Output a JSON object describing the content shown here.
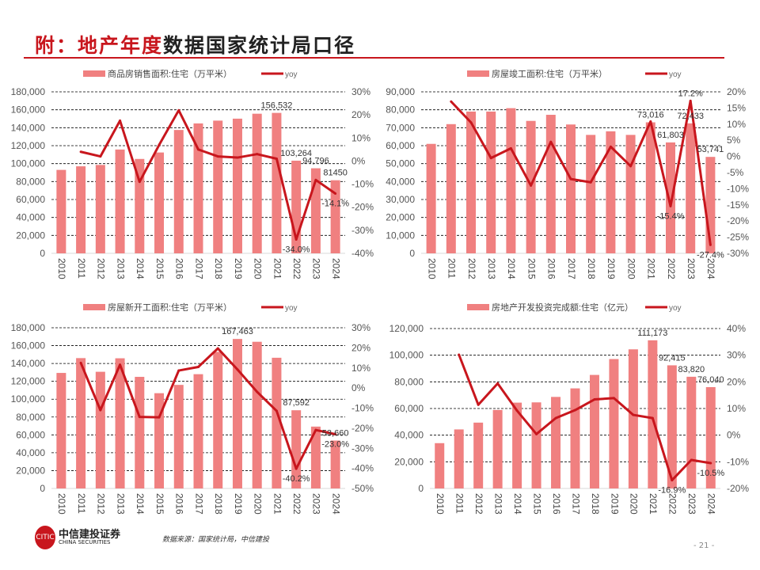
{
  "title": {
    "red_part": "附：地产年度",
    "black_part": "数据国家统计局口径"
  },
  "colors": {
    "bar": "#f08080",
    "line": "#c8161d",
    "title_red": "#c8161d"
  },
  "footer": {
    "logo_cn": "中信建投证券",
    "logo_en": "CHINA SECURITIES",
    "source": "数据来源：国家统计局，中信建投",
    "page_number": "- 21 -"
  },
  "chart_data": [
    {
      "type": "bar+line",
      "categories": [
        "2010",
        "2011",
        "2012",
        "2013",
        "2014",
        "2015",
        "2016",
        "2017",
        "2018",
        "2019",
        "2020",
        "2021",
        "2022",
        "2023",
        "2024"
      ],
      "series": [
        {
          "name": "商品房销售面积:住宅（万平米）",
          "type": "bar",
          "axis": "left",
          "values": [
            93000,
            97000,
            98500,
            115700,
            105200,
            112400,
            137500,
            144800,
            147900,
            150100,
            155600,
            156532,
            103264,
            94796,
            81450
          ]
        },
        {
          "name": "yoy",
          "type": "line",
          "axis": "right",
          "values": [
            null,
            4,
            2,
            17.5,
            -9,
            7,
            22,
            5,
            2,
            1.5,
            3,
            1,
            -34.0,
            -8.2,
            -14.1
          ]
        }
      ],
      "left_axis": {
        "min": 0,
        "max": 180000,
        "step": 20000,
        "ticks": [
          "0",
          "20,000",
          "40,000",
          "60,000",
          "80,000",
          "100,000",
          "120,000",
          "140,000",
          "160,000",
          "180,000"
        ]
      },
      "right_axis": {
        "min": -40,
        "max": 30,
        "step": 10,
        "ticks": [
          "-40%",
          "-30%",
          "-20%",
          "-10%",
          "0%",
          "10%",
          "20%",
          "30%"
        ]
      },
      "annotations": [
        {
          "text": "156,532",
          "series": 0,
          "index": 11,
          "pos": "above"
        },
        {
          "text": "103,264",
          "series": 0,
          "index": 12,
          "pos": "above"
        },
        {
          "text": "94,796",
          "series": 0,
          "index": 13,
          "pos": "above"
        },
        {
          "text": "81450",
          "series": 0,
          "index": 14,
          "pos": "above"
        },
        {
          "text": "-34.0%",
          "series": 1,
          "index": 12,
          "pos": "below"
        },
        {
          "text": "-14.1%",
          "series": 1,
          "index": 14,
          "pos": "below"
        }
      ],
      "grid": true,
      "legend": "top"
    },
    {
      "type": "bar+line",
      "categories": [
        "2010",
        "2011",
        "2012",
        "2013",
        "2014",
        "2015",
        "2016",
        "2017",
        "2018",
        "2019",
        "2020",
        "2021",
        "2022",
        "2023",
        "2024"
      ],
      "series": [
        {
          "name": "房屋竣工面积:住宅（万平米）",
          "type": "bar",
          "axis": "left",
          "values": [
            61000,
            72000,
            79000,
            79000,
            80900,
            73800,
            77200,
            71800,
            66000,
            68000,
            66000,
            73016,
            61803,
            72433,
            53741
          ]
        },
        {
          "name": "yoy",
          "type": "line",
          "axis": "right",
          "values": [
            null,
            17,
            10.5,
            -0.5,
            2.5,
            -9,
            4.5,
            -7,
            -8,
            3,
            -3,
            10.8,
            -15.4,
            17.2,
            -27.4
          ]
        }
      ],
      "left_axis": {
        "min": 0,
        "max": 90000,
        "step": 10000,
        "ticks": [
          "0",
          "10,000",
          "20,000",
          "30,000",
          "40,000",
          "50,000",
          "60,000",
          "70,000",
          "80,000",
          "90,000"
        ]
      },
      "right_axis": {
        "min": -30,
        "max": 20,
        "step": 5,
        "ticks": [
          "-30%",
          "-25%",
          "-20%",
          "-15%",
          "-10%",
          "-5%",
          "0%",
          "5%",
          "10%",
          "15%",
          "20%"
        ]
      },
      "annotations": [
        {
          "text": "73,016",
          "series": 0,
          "index": 11,
          "pos": "above"
        },
        {
          "text": "61,803",
          "series": 0,
          "index": 12,
          "pos": "above"
        },
        {
          "text": "72,433",
          "series": 0,
          "index": 13,
          "pos": "above"
        },
        {
          "text": "53,741",
          "series": 0,
          "index": 14,
          "pos": "above"
        },
        {
          "text": "17.2%",
          "series": 1,
          "index": 13,
          "pos": "above"
        },
        {
          "text": "-15.4%",
          "series": 1,
          "index": 12,
          "pos": "below"
        },
        {
          "text": "-27.4%",
          "series": 1,
          "index": 14,
          "pos": "below"
        }
      ],
      "grid": true,
      "legend": "top"
    },
    {
      "type": "bar+line",
      "categories": [
        "2010",
        "2011",
        "2012",
        "2013",
        "2014",
        "2015",
        "2016",
        "2017",
        "2018",
        "2019",
        "2020",
        "2021",
        "2022",
        "2023",
        "2024"
      ],
      "series": [
        {
          "name": "房屋新开工面积:住宅（万平米）",
          "type": "bar",
          "axis": "left",
          "values": [
            129400,
            146000,
            130700,
            145800,
            125000,
            106700,
            116000,
            128000,
            153000,
            167463,
            164300,
            146400,
            87592,
            69300,
            53660
          ]
        },
        {
          "name": "yoy",
          "type": "line",
          "axis": "right",
          "values": [
            null,
            12.5,
            -11,
            11.6,
            -14.4,
            -14.6,
            8.7,
            10.5,
            19.7,
            9.2,
            -1.9,
            -11.4,
            -40.2,
            -20.9,
            -23.0
          ]
        }
      ],
      "left_axis": {
        "min": 0,
        "max": 180000,
        "step": 20000,
        "ticks": [
          "0",
          "20,000",
          "40,000",
          "60,000",
          "80,000",
          "100,000",
          "120,000",
          "140,000",
          "160,000",
          "180,000"
        ]
      },
      "right_axis": {
        "min": -50,
        "max": 30,
        "step": 10,
        "ticks": [
          "-50%",
          "-40%",
          "-30%",
          "-20%",
          "-10%",
          "0%",
          "10%",
          "20%",
          "30%"
        ]
      },
      "annotations": [
        {
          "text": "167,463",
          "series": 0,
          "index": 9,
          "pos": "above"
        },
        {
          "text": "87,592",
          "series": 0,
          "index": 12,
          "pos": "above"
        },
        {
          "text": "53,660",
          "series": 0,
          "index": 14,
          "pos": "above"
        },
        {
          "text": "-40.2%",
          "series": 1,
          "index": 12,
          "pos": "below"
        },
        {
          "text": "-23.0%",
          "series": 1,
          "index": 14,
          "pos": "below"
        }
      ],
      "grid": true,
      "legend": "top"
    },
    {
      "type": "bar+line",
      "categories": [
        "2010",
        "2011",
        "2012",
        "2013",
        "2014",
        "2015",
        "2016",
        "2017",
        "2018",
        "2019",
        "2020",
        "2021",
        "2022",
        "2023",
        "2024"
      ],
      "series": [
        {
          "name": "房地产开发投资完成额:住宅（亿元）",
          "type": "bar",
          "axis": "left",
          "values": [
            34000,
            44300,
            49400,
            58900,
            64400,
            64600,
            68700,
            75100,
            85200,
            97100,
            104400,
            111173,
            92415,
            83820,
            76040
          ]
        },
        {
          "name": "yoy",
          "type": "line",
          "axis": "right",
          "values": [
            null,
            30.2,
            11.4,
            19.4,
            9.2,
            0.4,
            6.4,
            9.4,
            13.4,
            13.9,
            7.6,
            6.4,
            -16.9,
            -9.3,
            -10.5
          ]
        }
      ],
      "left_axis": {
        "min": 0,
        "max": 120000,
        "step": 20000,
        "ticks": [
          "0",
          "20,000",
          "40,000",
          "60,000",
          "80,000",
          "100,000",
          "120,000"
        ]
      },
      "right_axis": {
        "min": -20,
        "max": 40,
        "step": 10,
        "ticks": [
          "-20%",
          "-10%",
          "0%",
          "10%",
          "20%",
          "30%",
          "40%"
        ]
      },
      "annotations": [
        {
          "text": "111,173",
          "series": 0,
          "index": 11,
          "pos": "above"
        },
        {
          "text": "92,415",
          "series": 0,
          "index": 12,
          "pos": "above"
        },
        {
          "text": "83,820",
          "series": 0,
          "index": 13,
          "pos": "above"
        },
        {
          "text": "76,040",
          "series": 0,
          "index": 14,
          "pos": "above"
        },
        {
          "text": "-16.9%",
          "series": 1,
          "index": 12,
          "pos": "below"
        },
        {
          "text": "-10.5%",
          "series": 1,
          "index": 14,
          "pos": "below"
        }
      ],
      "grid": true,
      "legend": "top"
    }
  ]
}
